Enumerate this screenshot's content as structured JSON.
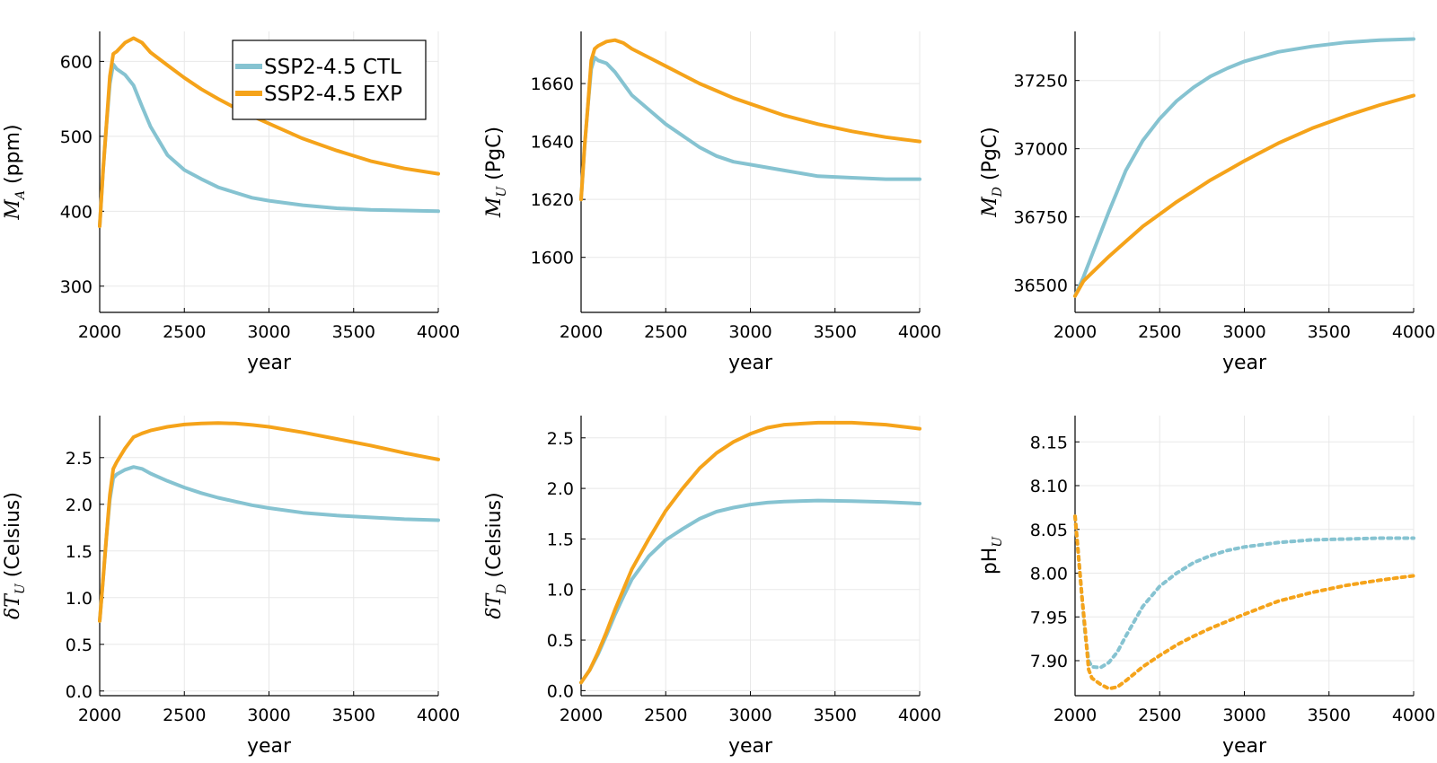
{
  "colors": {
    "ctl": "#86c3d1",
    "exp": "#f5a31a"
  },
  "legend": {
    "ctl_label": "SSP2-4.5 CTL",
    "exp_label": "SSP2-4.5 EXP"
  },
  "chart_data": [
    {
      "type": "line",
      "xlabel": "year",
      "ylabel": {
        "pre": "",
        "math": "M",
        "sub": "A",
        "post": " (ppm)"
      },
      "xlim": [
        2000,
        4000
      ],
      "ylim": [
        265,
        640
      ],
      "xticks": [
        "2000",
        "2500",
        "3000",
        "3500",
        "4000"
      ],
      "yticks": [
        {
          "v": 300,
          "label": "300"
        },
        {
          "v": 400,
          "label": "400"
        },
        {
          "v": 500,
          "label": "500"
        },
        {
          "v": 600,
          "label": "600"
        }
      ],
      "legend": "top-right",
      "series": [
        {
          "name": "SSP2-4.5 CTL",
          "key": "ctl",
          "style": "solid",
          "x": [
            2000,
            2020,
            2040,
            2060,
            2080,
            2100,
            2150,
            2200,
            2250,
            2300,
            2400,
            2500,
            2600,
            2700,
            2800,
            2900,
            3000,
            3200,
            3400,
            3600,
            3800,
            4000
          ],
          "y": [
            380,
            455,
            515,
            570,
            596,
            590,
            582,
            568,
            540,
            513,
            475,
            455,
            443,
            432,
            425,
            418,
            414,
            408,
            404,
            402,
            401,
            400
          ]
        },
        {
          "name": "SSP2-4.5 EXP",
          "key": "exp",
          "style": "solid",
          "x": [
            2000,
            2020,
            2040,
            2060,
            2080,
            2100,
            2150,
            2200,
            2250,
            2300,
            2400,
            2500,
            2600,
            2700,
            2800,
            2900,
            3000,
            3200,
            3400,
            3600,
            3800,
            4000
          ],
          "y": [
            380,
            455,
            515,
            580,
            610,
            613,
            625,
            631,
            625,
            612,
            595,
            578,
            563,
            550,
            538,
            527,
            517,
            497,
            481,
            467,
            457,
            450
          ]
        }
      ]
    },
    {
      "type": "line",
      "xlabel": "year",
      "ylabel": {
        "pre": "",
        "math": "M",
        "sub": "U",
        "post": " (PgC)"
      },
      "xlim": [
        2000,
        4000
      ],
      "ylim": [
        1581,
        1678
      ],
      "xticks": [
        "2000",
        "2500",
        "3000",
        "3500",
        "4000"
      ],
      "yticks": [
        {
          "v": 1600,
          "label": "1600"
        },
        {
          "v": 1620,
          "label": "1620"
        },
        {
          "v": 1640,
          "label": "1640"
        },
        {
          "v": 1660,
          "label": "1660"
        }
      ],
      "series": [
        {
          "name": "SSP2-4.5 CTL",
          "key": "ctl",
          "style": "solid",
          "x": [
            2000,
            2020,
            2040,
            2060,
            2080,
            2100,
            2150,
            2200,
            2250,
            2300,
            2400,
            2500,
            2600,
            2700,
            2800,
            2900,
            3000,
            3200,
            3400,
            3600,
            3800,
            4000
          ],
          "y": [
            1620,
            1638,
            1652,
            1665,
            1669,
            1668,
            1667,
            1664,
            1660,
            1656,
            1651,
            1646,
            1642,
            1638,
            1635,
            1633,
            1632,
            1630,
            1628,
            1627.5,
            1627,
            1627
          ]
        },
        {
          "name": "SSP2-4.5 EXP",
          "key": "exp",
          "style": "solid",
          "x": [
            2000,
            2020,
            2040,
            2060,
            2080,
            2100,
            2150,
            2200,
            2250,
            2300,
            2400,
            2500,
            2600,
            2700,
            2800,
            2900,
            3000,
            3200,
            3400,
            3600,
            3800,
            4000
          ],
          "y": [
            1620,
            1638,
            1652,
            1668,
            1672,
            1673,
            1674.5,
            1675,
            1674,
            1672,
            1669,
            1666,
            1663,
            1660,
            1657.5,
            1655,
            1653,
            1649,
            1646,
            1643.5,
            1641.5,
            1640
          ]
        }
      ]
    },
    {
      "type": "line",
      "xlabel": "year",
      "ylabel": {
        "pre": "",
        "math": "M",
        "sub": "D",
        "post": " (PgC)"
      },
      "xlim": [
        2000,
        4000
      ],
      "ylim": [
        36400,
        37430
      ],
      "xticks": [
        "2000",
        "2500",
        "3000",
        "3500",
        "4000"
      ],
      "yticks": [
        {
          "v": 36500,
          "label": "36500"
        },
        {
          "v": 36750,
          "label": "36750"
        },
        {
          "v": 37000,
          "label": "37000"
        },
        {
          "v": 37250,
          "label": "37250"
        }
      ],
      "series": [
        {
          "name": "SSP2-4.5 CTL",
          "key": "ctl",
          "style": "solid",
          "x": [
            2000,
            2050,
            2100,
            2200,
            2300,
            2400,
            2500,
            2600,
            2700,
            2800,
            2900,
            3000,
            3200,
            3400,
            3600,
            3800,
            4000
          ],
          "y": [
            36460,
            36530,
            36610,
            36770,
            36920,
            37030,
            37110,
            37175,
            37225,
            37265,
            37295,
            37320,
            37355,
            37375,
            37390,
            37398,
            37402
          ]
        },
        {
          "name": "SSP2-4.5 EXP",
          "key": "exp",
          "style": "solid",
          "x": [
            2000,
            2050,
            2100,
            2200,
            2300,
            2400,
            2500,
            2600,
            2700,
            2800,
            2900,
            3000,
            3200,
            3400,
            3600,
            3800,
            4000
          ],
          "y": [
            36460,
            36515,
            36545,
            36605,
            36660,
            36715,
            36760,
            36805,
            36845,
            36885,
            36920,
            36955,
            37020,
            37075,
            37120,
            37160,
            37195
          ]
        }
      ]
    },
    {
      "type": "line",
      "xlabel": "year",
      "ylabel": {
        "pre": "δ",
        "math": "T",
        "sub": "U",
        "post": " (Celsius)"
      },
      "xlim": [
        2000,
        4000
      ],
      "ylim": [
        -0.05,
        2.95
      ],
      "xticks": [
        "2000",
        "2500",
        "3000",
        "3500",
        "4000"
      ],
      "yticks": [
        {
          "v": 0,
          "label": "0.0"
        },
        {
          "v": 0.5,
          "label": "0.5"
        },
        {
          "v": 1.0,
          "label": "1.0"
        },
        {
          "v": 1.5,
          "label": "1.5"
        },
        {
          "v": 2.0,
          "label": "2.0"
        },
        {
          "v": 2.5,
          "label": "2.5"
        }
      ],
      "series": [
        {
          "name": "SSP2-4.5 CTL",
          "key": "ctl",
          "style": "solid",
          "x": [
            2000,
            2020,
            2040,
            2060,
            2080,
            2100,
            2150,
            2200,
            2250,
            2300,
            2400,
            2500,
            2600,
            2700,
            2800,
            2900,
            3000,
            3200,
            3400,
            3600,
            3800,
            4000
          ],
          "y": [
            0.75,
            1.2,
            1.65,
            2.05,
            2.28,
            2.32,
            2.37,
            2.4,
            2.38,
            2.33,
            2.25,
            2.18,
            2.12,
            2.07,
            2.03,
            1.99,
            1.96,
            1.91,
            1.88,
            1.86,
            1.84,
            1.83
          ]
        },
        {
          "name": "SSP2-4.5 EXP",
          "key": "exp",
          "style": "solid",
          "x": [
            2000,
            2020,
            2040,
            2060,
            2080,
            2100,
            2150,
            2200,
            2250,
            2300,
            2400,
            2500,
            2600,
            2700,
            2800,
            2900,
            3000,
            3200,
            3400,
            3600,
            3800,
            4000
          ],
          "y": [
            0.75,
            1.2,
            1.65,
            2.1,
            2.38,
            2.45,
            2.6,
            2.72,
            2.76,
            2.79,
            2.83,
            2.855,
            2.865,
            2.87,
            2.865,
            2.85,
            2.83,
            2.77,
            2.7,
            2.63,
            2.55,
            2.48
          ]
        }
      ]
    },
    {
      "type": "line",
      "xlabel": "year",
      "ylabel": {
        "pre": "δ",
        "math": "T",
        "sub": "D",
        "post": " (Celsius)"
      },
      "xlim": [
        2000,
        4000
      ],
      "ylim": [
        -0.05,
        2.72
      ],
      "xticks": [
        "2000",
        "2500",
        "3000",
        "3500",
        "4000"
      ],
      "yticks": [
        {
          "v": 0,
          "label": "0.0"
        },
        {
          "v": 0.5,
          "label": "0.5"
        },
        {
          "v": 1.0,
          "label": "1.0"
        },
        {
          "v": 1.5,
          "label": "1.5"
        },
        {
          "v": 2.0,
          "label": "2.0"
        },
        {
          "v": 2.5,
          "label": "2.5"
        }
      ],
      "series": [
        {
          "name": "SSP2-4.5 CTL",
          "key": "ctl",
          "style": "solid",
          "x": [
            2000,
            2050,
            2100,
            2150,
            2200,
            2250,
            2300,
            2400,
            2500,
            2600,
            2700,
            2800,
            2900,
            3000,
            3100,
            3200,
            3400,
            3600,
            3800,
            4000
          ],
          "y": [
            0.08,
            0.2,
            0.36,
            0.55,
            0.75,
            0.93,
            1.1,
            1.33,
            1.49,
            1.6,
            1.7,
            1.77,
            1.81,
            1.84,
            1.86,
            1.87,
            1.88,
            1.875,
            1.865,
            1.85
          ]
        },
        {
          "name": "SSP2-4.5 EXP",
          "key": "exp",
          "style": "solid",
          "x": [
            2000,
            2050,
            2100,
            2150,
            2200,
            2250,
            2300,
            2400,
            2500,
            2600,
            2700,
            2800,
            2900,
            3000,
            3100,
            3200,
            3400,
            3600,
            3800,
            4000
          ],
          "y": [
            0.08,
            0.2,
            0.38,
            0.58,
            0.8,
            1.0,
            1.2,
            1.5,
            1.78,
            2.0,
            2.2,
            2.35,
            2.46,
            2.54,
            2.6,
            2.63,
            2.65,
            2.65,
            2.63,
            2.59
          ]
        }
      ]
    },
    {
      "type": "line",
      "xlabel": "year",
      "ylabel": {
        "pre": "pH",
        "math": "",
        "sub": "U",
        "post": ""
      },
      "xlim": [
        2000,
        4000
      ],
      "ylim": [
        7.86,
        8.18
      ],
      "xticks": [
        "2000",
        "2500",
        "3000",
        "3500",
        "4000"
      ],
      "yticks": [
        {
          "v": 7.9,
          "label": "7.90"
        },
        {
          "v": 7.95,
          "label": "7.95"
        },
        {
          "v": 8.0,
          "label": "8.00"
        },
        {
          "v": 8.05,
          "label": "8.05"
        },
        {
          "v": 8.1,
          "label": "8.10"
        },
        {
          "v": 8.15,
          "label": "8.15"
        }
      ],
      "series": [
        {
          "name": "SSP2-4.5 CTL",
          "key": "ctl",
          "style": "dotted",
          "x": [
            2000,
            2020,
            2040,
            2060,
            2080,
            2100,
            2150,
            2200,
            2250,
            2300,
            2400,
            2500,
            2600,
            2700,
            2800,
            2900,
            3000,
            3200,
            3400,
            3600,
            3800,
            4000
          ],
          "y": [
            8.065,
            8.02,
            7.975,
            7.93,
            7.9,
            7.893,
            7.892,
            7.898,
            7.91,
            7.928,
            7.962,
            7.985,
            8.0,
            8.012,
            8.02,
            8.026,
            8.03,
            8.035,
            8.038,
            8.039,
            8.04,
            8.04
          ]
        },
        {
          "name": "SSP2-4.5 EXP",
          "key": "exp",
          "style": "dotted",
          "x": [
            2000,
            2020,
            2040,
            2060,
            2080,
            2100,
            2150,
            2200,
            2250,
            2300,
            2400,
            2500,
            2600,
            2700,
            2800,
            2900,
            3000,
            3200,
            3400,
            3600,
            3800,
            4000
          ],
          "y": [
            8.065,
            8.02,
            7.975,
            7.935,
            7.89,
            7.88,
            7.873,
            7.868,
            7.87,
            7.877,
            7.893,
            7.906,
            7.918,
            7.928,
            7.937,
            7.945,
            7.953,
            7.968,
            7.978,
            7.986,
            7.992,
            7.997
          ]
        }
      ]
    }
  ]
}
